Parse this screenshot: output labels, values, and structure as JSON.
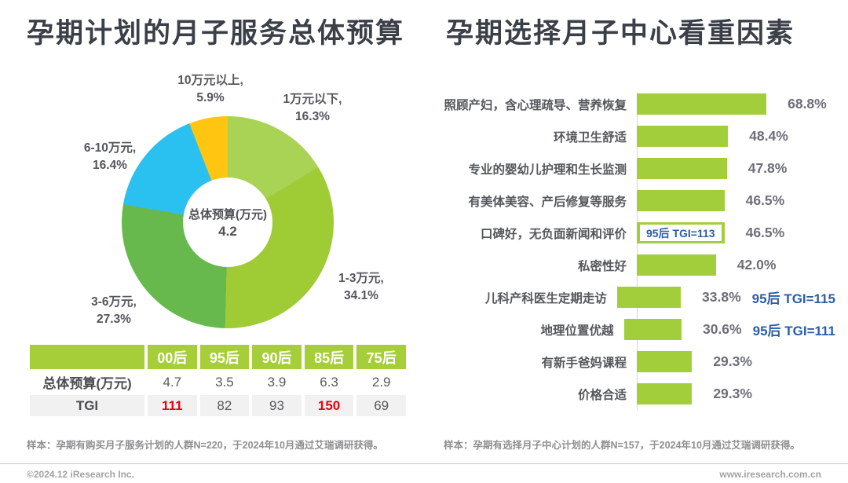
{
  "page": {
    "background": "#FFFFFF",
    "footer": {
      "left": "©2024.12 iResearch Inc.",
      "right": "www.iresearch.com.cn"
    }
  },
  "left_panel": {
    "title": "孕期计划的月子服务总体预算",
    "footnote": "样本：孕期有购买月子服务计划的人群N=220，于2024年10月通过艾瑞调研获得。"
  },
  "right_panel": {
    "title": "孕期选择月子中心看重因素",
    "footnote": "样本：孕期有选择月子中心计划的人群N=157，于2024年10月通过艾瑞调研获得。"
  },
  "colors": {
    "title_gray": "#3B3F47",
    "bar_green": "#A3CE3B",
    "table_header_green": "#A5CE39",
    "tgi_red": "#E8020E",
    "annotation_blue": "#2B5DA7",
    "label_gray": "#54565E",
    "value_gray": "#6D6E78"
  },
  "chart_data": [
    {
      "id": "budget-donut",
      "type": "pie",
      "title": "孕期计划的月子服务总体预算",
      "center_label": "总体预算(万元)",
      "center_value": "4.2",
      "value_unit": "%",
      "segments": [
        {
          "label": "1万元以下",
          "value": 16.3,
          "color": "#A8D355"
        },
        {
          "label": "1-3万元",
          "value": 34.1,
          "color": "#9FCB35"
        },
        {
          "label": "3-6万元",
          "value": 27.3,
          "color": "#67B94E"
        },
        {
          "label": "6-10万元",
          "value": 16.4,
          "color": "#2AC1F0"
        },
        {
          "label": "10万元以上",
          "value": 5.9,
          "color": "#FFC510"
        }
      ]
    },
    {
      "id": "budget-by-generation-table",
      "type": "table",
      "columns": [
        "",
        "00后",
        "95后",
        "90后",
        "85后",
        "75后"
      ],
      "rows": [
        {
          "label": "总体预算(万元)",
          "values": [
            "4.7",
            "3.5",
            "3.9",
            "6.3",
            "2.9"
          ],
          "red_indexes": []
        },
        {
          "label": "TGI",
          "values": [
            "111",
            "82",
            "93",
            "150",
            "69"
          ],
          "red_indexes": [
            0,
            3
          ]
        }
      ]
    },
    {
      "id": "factors-bar",
      "type": "bar",
      "title": "孕期选择月子中心看重因素",
      "categories": [
        "照顾产妇，含心理疏导、营养恢复",
        "环境卫生舒适",
        "专业的婴幼儿护理和生长监测",
        "有美体美容、产后修复等服务",
        "口碑好，无负面新闻和评价",
        "私密性好",
        "儿科产科医生定期走访",
        "地理位置优越",
        "有新手爸妈课程",
        "价格合适"
      ],
      "values": [
        68.8,
        48.4,
        47.8,
        46.5,
        46.5,
        42.0,
        33.8,
        30.6,
        29.3,
        29.3
      ],
      "value_unit": "%",
      "xlim": [
        0,
        70
      ],
      "legend": "none",
      "grid": "off",
      "annotations": [
        {
          "bar_index": 4,
          "text": "95后 TGI=113",
          "style": "boxed-inside-bar"
        },
        {
          "bar_index": 6,
          "text": "95后 TGI=115",
          "style": "after-value"
        },
        {
          "bar_index": 7,
          "text": "95后 TGI=111",
          "style": "after-value"
        }
      ]
    }
  ]
}
